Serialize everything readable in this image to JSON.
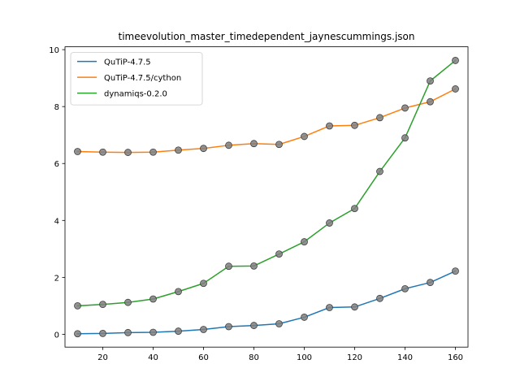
{
  "chart_data": {
    "type": "line",
    "title": "timeevolution_master_timedependent_jaynescummings.json",
    "xlabel": "",
    "ylabel": "",
    "x": [
      10,
      20,
      30,
      40,
      50,
      60,
      70,
      80,
      90,
      100,
      110,
      120,
      130,
      140,
      150,
      160
    ],
    "xticks": [
      20,
      40,
      60,
      80,
      100,
      120,
      140,
      160
    ],
    "yticks": [
      0,
      2,
      4,
      6,
      8,
      10
    ],
    "xlim": [
      5,
      165
    ],
    "ylim": [
      -0.45,
      10.1
    ],
    "grid": false,
    "legend_position": "upper-left",
    "marker": "circle",
    "marker_color": "#7f7f7f",
    "series": [
      {
        "name": "QuTiP-4.7.5",
        "color": "#1f77b4",
        "values": [
          0.02,
          0.03,
          0.06,
          0.07,
          0.11,
          0.17,
          0.27,
          0.31,
          0.37,
          0.6,
          0.94,
          0.96,
          1.26,
          1.6,
          1.82,
          2.22
        ]
      },
      {
        "name": "QuTiP-4.7.5/cython",
        "color": "#ff7f0e",
        "values": [
          6.42,
          6.4,
          6.39,
          6.4,
          6.47,
          6.53,
          6.64,
          6.7,
          6.67,
          6.95,
          7.32,
          7.34,
          7.61,
          7.95,
          8.17,
          8.62
        ]
      },
      {
        "name": "dynamiqs-0.2.0",
        "color": "#2ca02c",
        "values": [
          1.0,
          1.05,
          1.12,
          1.24,
          1.5,
          1.79,
          2.39,
          2.4,
          2.82,
          3.25,
          3.91,
          4.42,
          5.72,
          6.9,
          8.9,
          9.62
        ]
      }
    ]
  }
}
